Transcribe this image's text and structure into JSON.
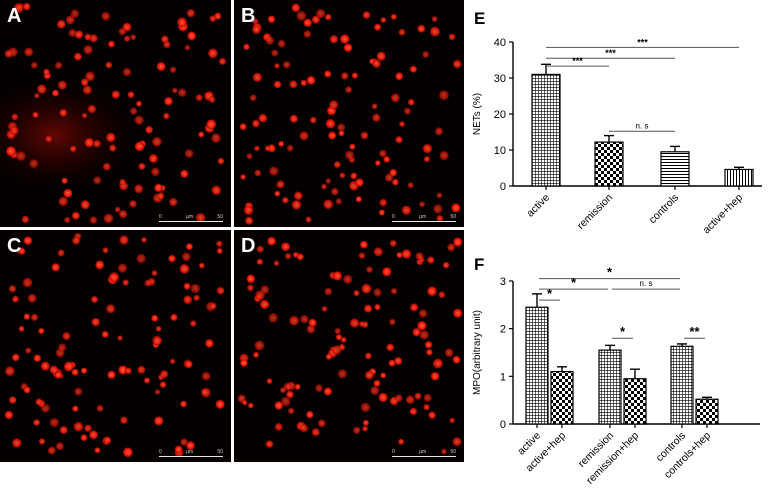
{
  "panels": [
    {
      "label": "A",
      "scale": {
        "left": "0",
        "unit": "µm",
        "right": "50"
      }
    },
    {
      "label": "B",
      "scale": {
        "left": "0",
        "unit": "µm",
        "right": "50"
      }
    },
    {
      "label": "C",
      "scale": {
        "left": "0",
        "unit": "µm",
        "right": "50"
      }
    },
    {
      "label": "D",
      "scale": {
        "left": "0",
        "unit": "µm",
        "right": "50"
      }
    }
  ],
  "colors": {
    "cell": "#ff1a0a",
    "cell_core": "#ff6040",
    "background": "#050000",
    "axis": "#000000",
    "sig_line": "#555555"
  },
  "chart_data": [
    {
      "type": "bar",
      "panel_label": "E",
      "ylabel": "NETs (%)",
      "ylim": [
        0,
        40
      ],
      "yticks": [
        0,
        10,
        20,
        30,
        40
      ],
      "categories": [
        "active",
        "remission",
        "controls",
        "active+hep"
      ],
      "values": [
        31,
        12.2,
        9.5,
        4.6
      ],
      "errors": [
        2.8,
        1.8,
        1.5,
        0.6
      ],
      "patterns": [
        "grid",
        "check",
        "hlines",
        "vlines"
      ],
      "significance": [
        {
          "from": 0,
          "to": 3,
          "label": "***",
          "y": 38.5
        },
        {
          "from": 0,
          "to": 2,
          "label": "***",
          "y": 35.5
        },
        {
          "from": 0,
          "to": 1,
          "label": "***",
          "y": 33.3
        },
        {
          "from": 1,
          "to": 2,
          "label": "n. s",
          "y": 15.2
        }
      ]
    },
    {
      "type": "bar",
      "panel_label": "F",
      "ylabel": "MPO(arbitrary unit)",
      "ylim": [
        0,
        3
      ],
      "yticks": [
        0,
        1,
        2,
        3
      ],
      "categories": [
        "active",
        "active+hep",
        "remission",
        "remission+hep",
        "controls",
        "controls+hep"
      ],
      "values": [
        2.45,
        1.1,
        1.55,
        0.95,
        1.63,
        0.52
      ],
      "errors": [
        0.28,
        0.1,
        0.1,
        0.2,
        0.05,
        0.04
      ],
      "patterns": [
        "grid",
        "check",
        "grid",
        "check",
        "grid",
        "check"
      ],
      "significance": [
        {
          "from": 0,
          "to": 4,
          "label": "*",
          "y": 3.05
        },
        {
          "from": 2,
          "to": 4,
          "label": "n. s",
          "y": 2.83
        },
        {
          "from": 0,
          "to": 2,
          "label": "*",
          "y": 2.83
        },
        {
          "from": 0,
          "to": 1,
          "label": "*",
          "y": 2.6
        },
        {
          "from": 2,
          "to": 3,
          "label": "*",
          "y": 1.8
        },
        {
          "from": 4,
          "to": 5,
          "label": "**",
          "y": 1.8
        }
      ]
    }
  ]
}
